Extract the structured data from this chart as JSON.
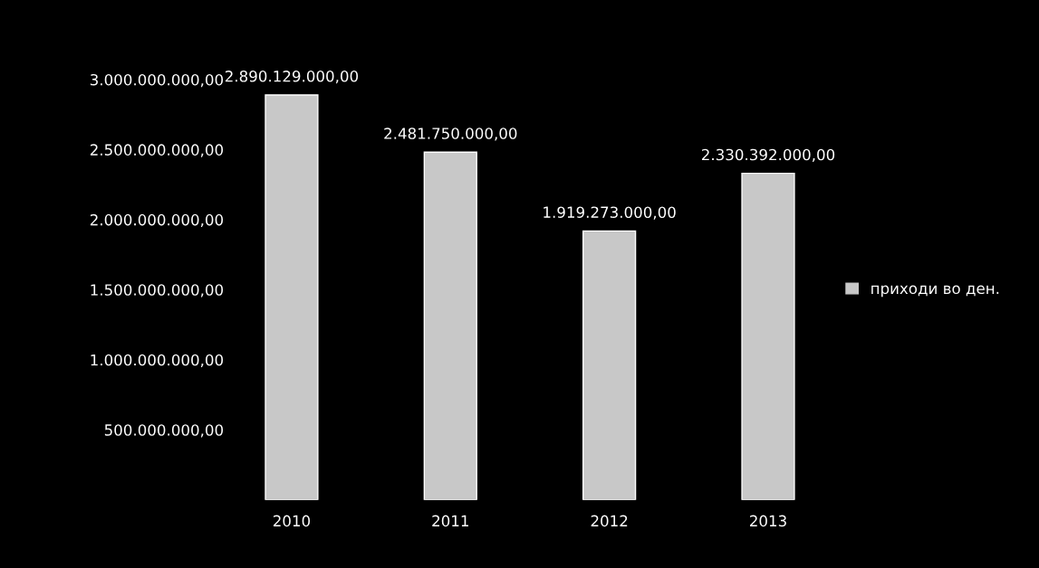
{
  "chart_data": {
    "type": "bar",
    "categories": [
      "2010",
      "2011",
      "2012",
      "2013"
    ],
    "series": [
      {
        "name": "приходи во ден.",
        "color": "#c8c8c8",
        "values": [
          2890129000,
          2481750000,
          1919273000,
          2330392000
        ],
        "value_labels": [
          "2.890.129.000,00",
          "2.481.750.000,00",
          "1.919.273.000,00",
          "2.330.392.000,00"
        ]
      }
    ],
    "ylim": [
      0,
      3000000000
    ],
    "yticks": [
      {
        "value": 500000000,
        "label": "500.000.000,00"
      },
      {
        "value": 1000000000,
        "label": "1.000.000.000,00"
      },
      {
        "value": 1500000000,
        "label": "1.500.000.000,00"
      },
      {
        "value": 2000000000,
        "label": "2.000.000.000,00"
      },
      {
        "value": 2500000000,
        "label": "2.500.000.000,00"
      },
      {
        "value": 3000000000,
        "label": "3.000.000.000,00"
      }
    ],
    "grid": false,
    "legend": "right"
  }
}
